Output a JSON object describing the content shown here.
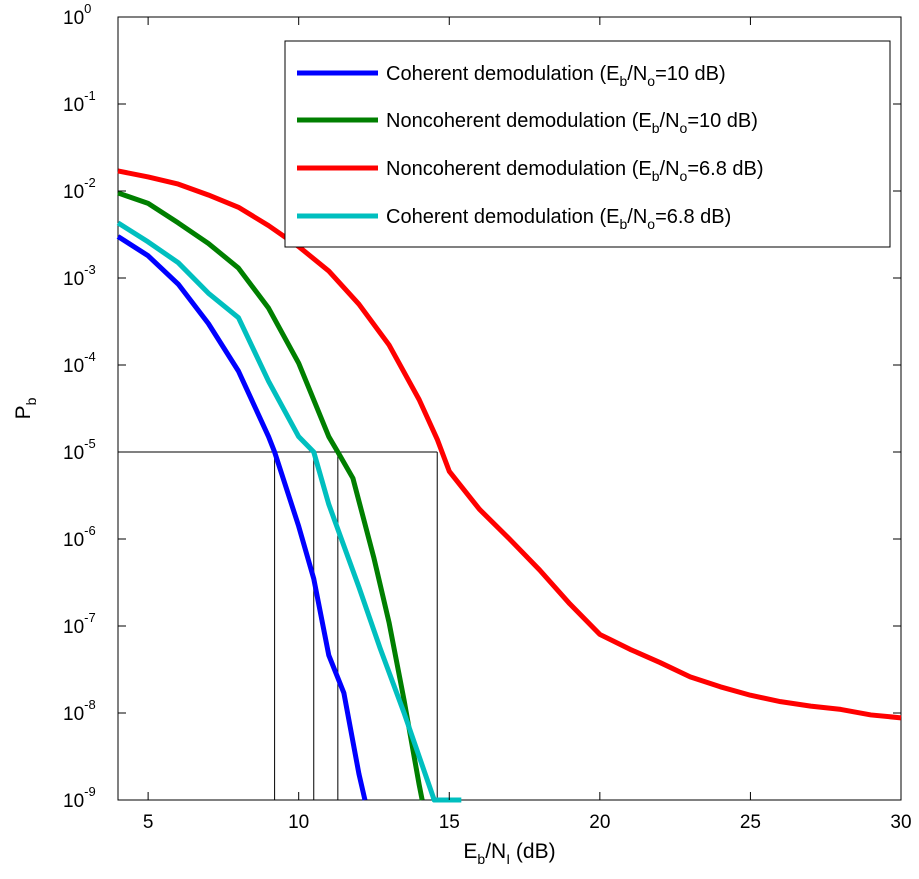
{
  "chart_data": {
    "type": "line",
    "xlabel": {
      "main": "E",
      "sub": "b",
      "mid": "/N",
      "sub2": "I",
      "tail": " (dB)"
    },
    "ylabel": {
      "main": "P",
      "sub": "b"
    },
    "xlim": [
      4,
      30
    ],
    "ylim": [
      1e-09,
      1
    ],
    "yscale": "log",
    "grid": false,
    "legend_position": "top-right",
    "x_ticks": [
      "5",
      "10",
      "15",
      "20",
      "25",
      "30"
    ],
    "y_ticks": [
      {
        "base": "10",
        "exp": "0"
      },
      {
        "base": "10",
        "exp": "-1"
      },
      {
        "base": "10",
        "exp": "-2"
      },
      {
        "base": "10",
        "exp": "-3"
      },
      {
        "base": "10",
        "exp": "-4"
      },
      {
        "base": "10",
        "exp": "-5"
      },
      {
        "base": "10",
        "exp": "-6"
      },
      {
        "base": "10",
        "exp": "-7"
      },
      {
        "base": "10",
        "exp": "-8"
      },
      {
        "base": "10",
        "exp": "-9"
      }
    ],
    "series": [
      {
        "name": "Coherent demodulation (Eb/No=10 dB)",
        "legend": {
          "pre": "Coherent demodulation (E",
          "sub1": "b",
          "mid": "/N",
          "sub2": "o",
          "post": "=10 dB)"
        },
        "color": "#0000ff",
        "x": [
          4,
          5,
          6,
          7,
          8,
          9,
          9.2,
          10,
          10.5,
          11,
          11.5,
          12,
          12.2
        ],
        "y": [
          0.003,
          0.0018,
          0.00085,
          0.0003,
          8.5e-05,
          1.5e-05,
          1e-05,
          1.4e-06,
          3.5e-07,
          4.6e-08,
          1.7e-08,
          2e-09,
          1e-09
        ]
      },
      {
        "name": "Noncoherent demodulation (Eb/No=10 dB)",
        "legend": {
          "pre": "Noncoherent demodulation (E",
          "sub1": "b",
          "mid": "/N",
          "sub2": "o",
          "post": "=10 dB)"
        },
        "color": "#007f00",
        "x": [
          4,
          5,
          6,
          7,
          8,
          9,
          10,
          11,
          11.3,
          11.8,
          12.5,
          13,
          13.5,
          14,
          14.1
        ],
        "y": [
          0.0095,
          0.0072,
          0.0043,
          0.0025,
          0.0013,
          0.00045,
          0.000105,
          1.5e-05,
          1e-05,
          5e-06,
          6e-07,
          1.1e-07,
          1.4e-08,
          1.5e-09,
          1e-09
        ]
      },
      {
        "name": "Noncoherent demodulation (Eb/No=6.8 dB)",
        "legend": {
          "pre": "Noncoherent demodulation (E",
          "sub1": "b",
          "mid": "/N",
          "sub2": "o",
          "post": "=6.8 dB)"
        },
        "color": "#ff0000",
        "x": [
          4,
          5,
          6,
          7,
          8,
          9,
          10,
          11,
          12,
          13,
          14,
          14.6,
          15,
          16,
          17,
          18,
          19,
          20,
          21,
          22,
          23,
          24,
          25,
          26,
          27,
          28,
          29,
          30
        ],
        "y": [
          0.017,
          0.0145,
          0.012,
          0.009,
          0.0065,
          0.004,
          0.0023,
          0.0012,
          0.0005,
          0.00017,
          4e-05,
          1.4e-05,
          6e-06,
          2.2e-06,
          1e-06,
          4.4e-07,
          1.8e-07,
          8e-08,
          5.4e-08,
          3.8e-08,
          2.6e-08,
          2e-08,
          1.6e-08,
          1.35e-08,
          1.2e-08,
          1.1e-08,
          9.5e-09,
          8.8e-09
        ]
      },
      {
        "name": "Coherent demodulation (Eb/No=6.8 dB)",
        "legend": {
          "pre": "Coherent demodulation (E",
          "sub1": "b",
          "mid": "/N",
          "sub2": "o",
          "post": "=6.8 dB)"
        },
        "color": "#00bfbf",
        "x": [
          4,
          5,
          6,
          7,
          8,
          9,
          10,
          10.5,
          11,
          12,
          12.7,
          13.5,
          14.5,
          15.4
        ],
        "y": [
          0.0043,
          0.0026,
          0.0015,
          0.00067,
          0.00035,
          6.5e-05,
          1.5e-05,
          1e-05,
          2.5e-06,
          2.8e-07,
          5.6e-08,
          1e-08,
          1e-09,
          1e-09
        ]
      }
    ],
    "reference_level": 1e-05,
    "reference_x": [
      9.2,
      10.5,
      11.3,
      14.6
    ]
  }
}
